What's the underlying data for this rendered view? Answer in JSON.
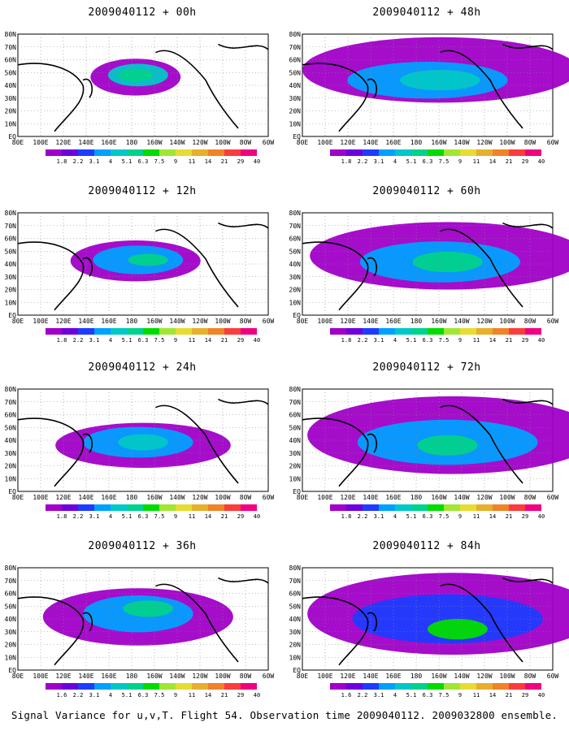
{
  "panels": [
    {
      "title": "2009040112 + 00h"
    },
    {
      "title": "2009040112 + 48h"
    },
    {
      "title": "2009040112 + 12h"
    },
    {
      "title": "2009040112 + 60h"
    },
    {
      "title": "2009040112 + 24h"
    },
    {
      "title": "2009040112 + 72h"
    },
    {
      "title": "2009040112 + 36h"
    },
    {
      "title": "2009040112 + 84h"
    }
  ],
  "lat_labels": [
    "80N",
    "70N",
    "60N",
    "50N",
    "40N",
    "30N",
    "20N",
    "10N",
    "EQ"
  ],
  "lon_labels": [
    "80E",
    "100E",
    "120E",
    "140E",
    "160E",
    "180",
    "160W",
    "140W",
    "120W",
    "100W",
    "80W",
    "60W"
  ],
  "colorbar": {
    "levels": [
      "1.8",
      "2.2",
      "3.1",
      "4",
      "5.1",
      "6.3",
      "7.5",
      "9",
      "11",
      "14",
      "21",
      "29",
      "40"
    ],
    "levels_alt": [
      "1.6",
      "2.2",
      "3.1",
      "4",
      "5.1",
      "6.3",
      "7.5",
      "9",
      "11",
      "14",
      "21",
      "29",
      "40"
    ],
    "colors": [
      "#a000c8",
      "#6e00dc",
      "#1e3cff",
      "#00a0ff",
      "#00c8c8",
      "#00d28c",
      "#00dc00",
      "#a0e632",
      "#e6dc32",
      "#e6af2d",
      "#f08228",
      "#fa3c3c",
      "#f00082"
    ]
  },
  "footer": "Signal Variance for u,v,T. Flight 54. Observation time 2009040112. 2009032800 ensemble."
}
